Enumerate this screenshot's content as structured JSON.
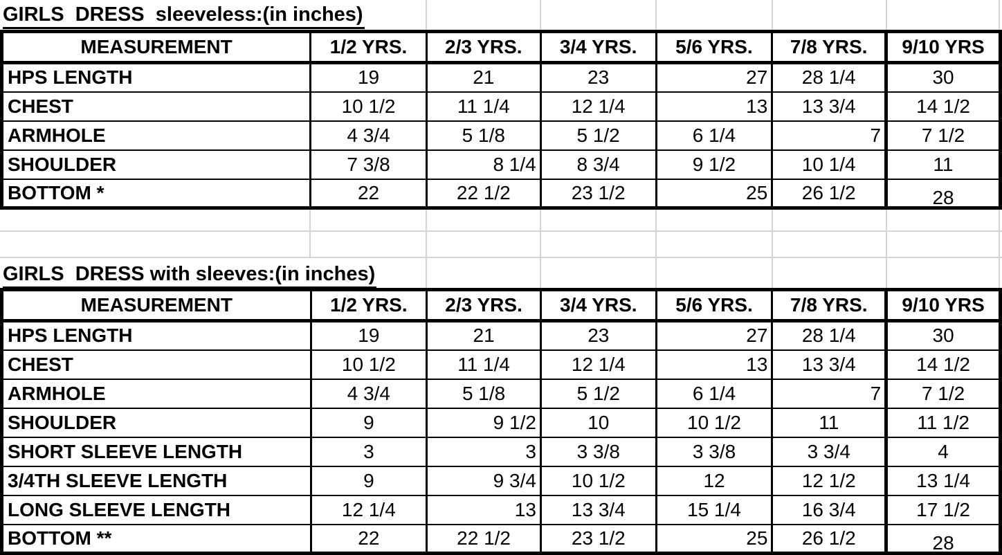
{
  "sheet": {
    "background_color": "#ffffff",
    "gridline_color": "#d4d4d4",
    "ink_color": "#000000",
    "tables": [
      {
        "title": "GIRLS  DRESS  sleeveless:(in inches)",
        "columns": [
          "MEASUREMENT",
          "1/2 YRS.",
          "2/3 YRS.",
          "3/4 YRS.",
          "5/6 YRS.",
          "7/8 YRS.",
          "9/10 YRS"
        ],
        "rows": [
          {
            "label": "HPS LENGTH",
            "values": [
              "19",
              "21",
              "23",
              "27",
              "28 1/4",
              "30"
            ],
            "aligns": [
              "c",
              "c",
              "c",
              "r",
              "c",
              "c"
            ]
          },
          {
            "label": "CHEST",
            "values": [
              "10 1/2",
              "11 1/4",
              "12 1/4",
              "13",
              "13 3/4",
              "14 1/2"
            ],
            "aligns": [
              "c",
              "c",
              "c",
              "r",
              "c",
              "c"
            ]
          },
          {
            "label": "ARMHOLE",
            "values": [
              "4 3/4",
              "5 1/8",
              "5 1/2",
              "6 1/4",
              "7",
              "7 1/2"
            ],
            "aligns": [
              "c",
              "c",
              "c",
              "c",
              "r",
              "c"
            ]
          },
          {
            "label": "SHOULDER",
            "values": [
              "7 3/8",
              "8 1/4",
              "8 3/4",
              "9 1/2",
              "10 1/4",
              "11"
            ],
            "aligns": [
              "c",
              "r",
              "c",
              "c",
              "c",
              "c"
            ]
          },
          {
            "label": "BOTTOM *",
            "values": [
              "22",
              "22 1/2",
              "23 1/2",
              "25",
              "26 1/2",
              "28"
            ],
            "aligns": [
              "c",
              "c",
              "c",
              "r",
              "c",
              "c"
            ]
          }
        ]
      },
      {
        "title": "GIRLS  DRESS with sleeves:(in inches)",
        "columns": [
          "MEASUREMENT",
          "1/2 YRS.",
          "2/3 YRS.",
          "3/4 YRS.",
          "5/6 YRS.",
          "7/8 YRS.",
          "9/10 YRS"
        ],
        "rows": [
          {
            "label": "HPS LENGTH",
            "values": [
              "19",
              "21",
              "23",
              "27",
              "28 1/4",
              "30"
            ],
            "aligns": [
              "c",
              "c",
              "c",
              "r",
              "c",
              "c"
            ]
          },
          {
            "label": "CHEST",
            "values": [
              "10 1/2",
              "11 1/4",
              "12 1/4",
              "13",
              "13 3/4",
              "14 1/2"
            ],
            "aligns": [
              "c",
              "c",
              "c",
              "r",
              "c",
              "c"
            ]
          },
          {
            "label": "ARMHOLE",
            "values": [
              "4 3/4",
              "5 1/8",
              "5 1/2",
              "6 1/4",
              "7",
              "7 1/2"
            ],
            "aligns": [
              "c",
              "c",
              "c",
              "c",
              "r",
              "c"
            ]
          },
          {
            "label": "SHOULDER",
            "values": [
              "9",
              "9 1/2",
              "10",
              "10 1/2",
              "11",
              "11 1/2"
            ],
            "aligns": [
              "c",
              "r",
              "c",
              "c",
              "c",
              "c"
            ]
          },
          {
            "label": "SHORT SLEEVE LENGTH",
            "values": [
              "3",
              "3",
              "3 3/8",
              "3 3/8",
              "3 3/4",
              "4"
            ],
            "aligns": [
              "c",
              "r",
              "c",
              "c",
              "c",
              "c"
            ]
          },
          {
            "label": "3/4TH SLEEVE LENGTH",
            "values": [
              "9",
              "9 3/4",
              "10 1/2",
              "12",
              "12 1/2",
              "13 1/4"
            ],
            "aligns": [
              "c",
              "r",
              "c",
              "c",
              "c",
              "c"
            ]
          },
          {
            "label": "LONG SLEEVE LENGTH",
            "values": [
              "12 1/4",
              "13",
              "13 3/4",
              "15 1/4",
              "16 3/4",
              "17 1/2"
            ],
            "aligns": [
              "c",
              "r",
              "c",
              "c",
              "c",
              "c"
            ]
          },
          {
            "label": "BOTTOM **",
            "values": [
              "22",
              "22 1/2",
              "23 1/2",
              "25",
              "26 1/2",
              "28"
            ],
            "aligns": [
              "c",
              "c",
              "c",
              "r",
              "c",
              "c"
            ]
          }
        ]
      }
    ]
  }
}
